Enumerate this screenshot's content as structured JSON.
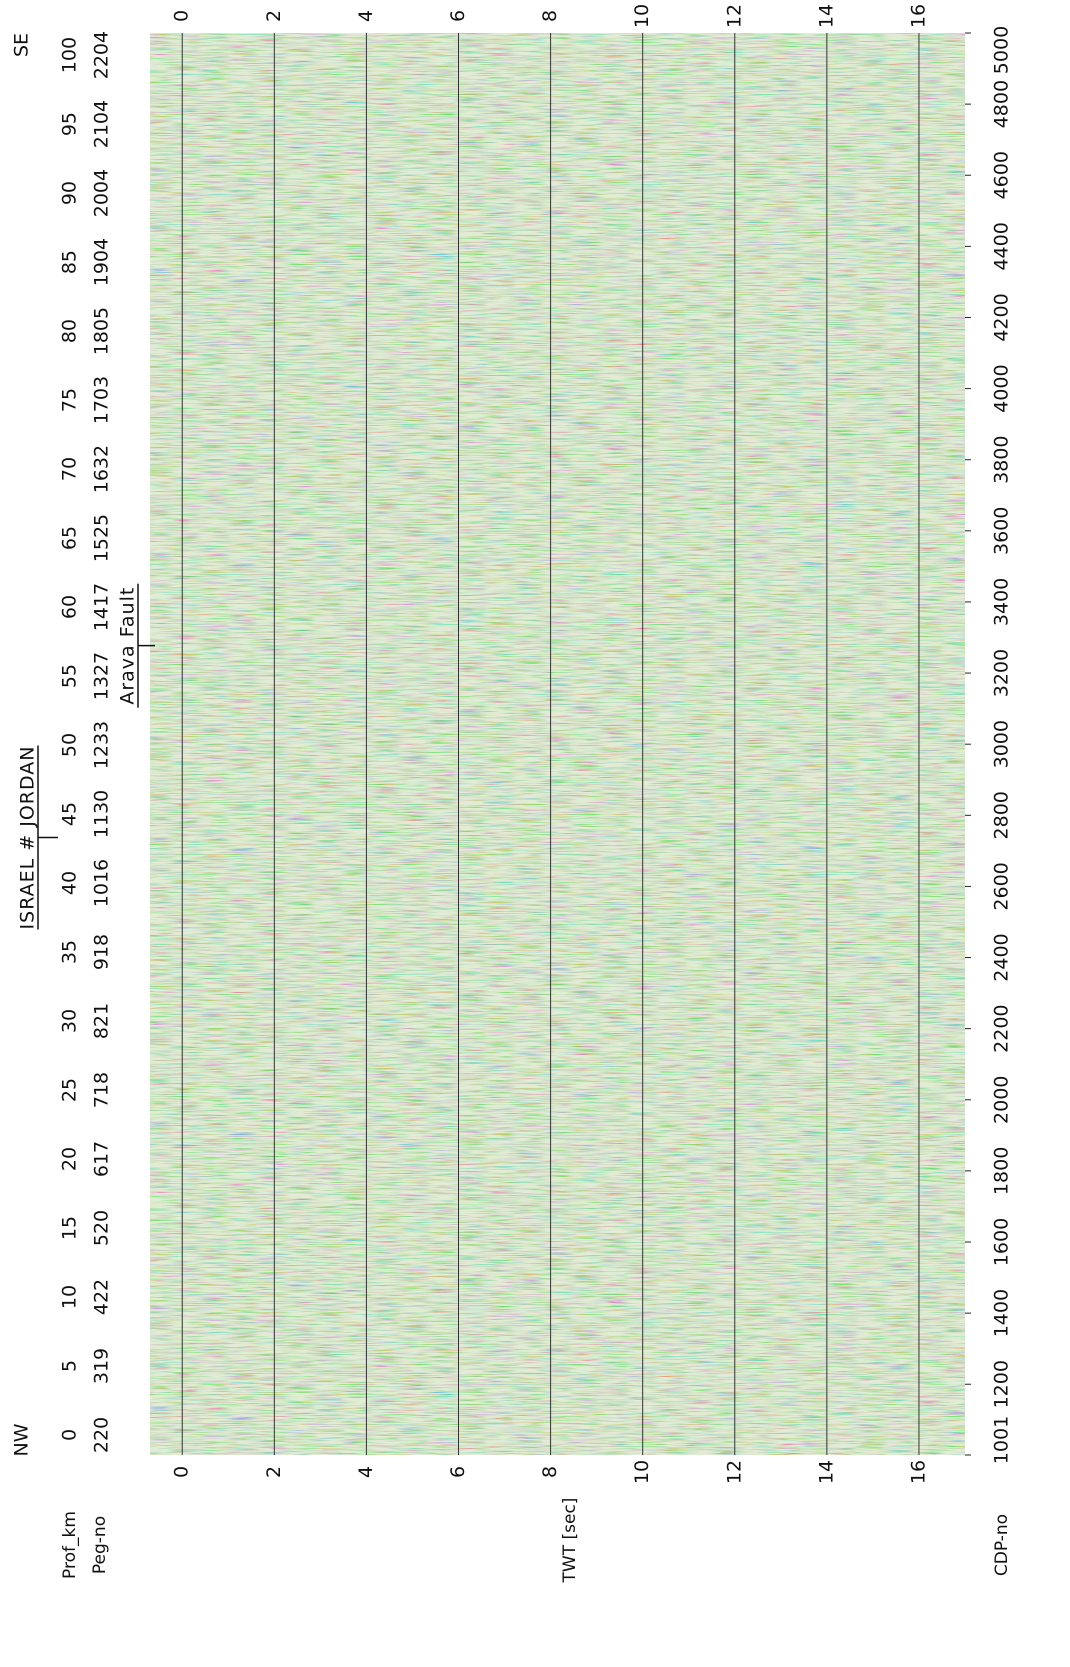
{
  "chart_data": {
    "type": "seismic-section",
    "left_label": "NW",
    "right_label": "SE",
    "x_label": "CDP-no",
    "y_label": "TWT [sec]",
    "x2_label": "Prof_km",
    "peg_label": "Peg-no",
    "xlim": [
      1001,
      5000
    ],
    "xticks": [
      1001,
      1200,
      1400,
      1600,
      1800,
      2000,
      2200,
      2400,
      2600,
      2800,
      3000,
      3200,
      3400,
      3600,
      3800,
      4000,
      4200,
      4400,
      4600,
      4800,
      5000
    ],
    "ylim": [
      -0.7,
      17
    ],
    "yticks": [
      0,
      2,
      4,
      6,
      8,
      10,
      12,
      14,
      16
    ],
    "x2lim": [
      -1.45,
      101.6
    ],
    "x2ticks": [
      0,
      5,
      10,
      15,
      20,
      25,
      30,
      35,
      40,
      45,
      50,
      55,
      60,
      65,
      70,
      75,
      80,
      85,
      90,
      95,
      100
    ],
    "peg_no": [
      220,
      319,
      422,
      520,
      617,
      718,
      821,
      918,
      1016,
      1130,
      1233,
      1327,
      1417,
      1525,
      1632,
      1703,
      1805,
      1904,
      2004,
      2104,
      2204
    ],
    "annotations": [
      {
        "text": "ISRAEL # JORDAN",
        "x2": 43.3
      },
      {
        "text": "Arava Fault",
        "x2": 57.2
      }
    ],
    "grid": true
  }
}
